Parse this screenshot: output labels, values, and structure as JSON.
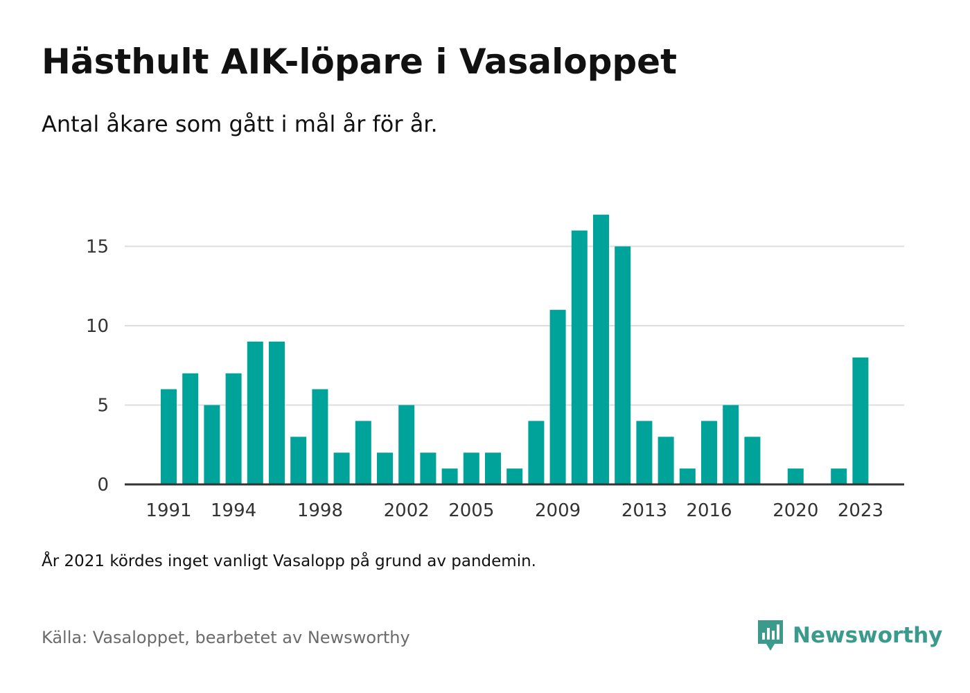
{
  "title": "Hästhult AIK-löpare i Vasaloppet",
  "subtitle": "Antal åkare som gått i mål år för år.",
  "note": "År 2021 kördes inget vanligt Vasalopp på grund av pandemin.",
  "source": "Källa: Vasaloppet, bearbetet av Newsworthy",
  "brand": {
    "name": "Newsworthy",
    "icon": "newsworthy-logo-icon"
  },
  "colors": {
    "bar": "#00a39a",
    "grid": "#dddddd",
    "axis": "#333333",
    "brand": "#3a9a8c"
  },
  "chart_data": {
    "type": "bar",
    "categories": [
      "1991",
      "1992",
      "1993",
      "1994",
      "1995",
      "1996",
      "1997",
      "1998",
      "1999",
      "2000",
      "2001",
      "2002",
      "2003",
      "2004",
      "2005",
      "2006",
      "2007",
      "2008",
      "2009",
      "2010",
      "2011",
      "2012",
      "2013",
      "2014",
      "2015",
      "2016",
      "2017",
      "2018",
      "2019",
      "2020",
      "2021",
      "2022",
      "2023"
    ],
    "values": [
      6,
      7,
      5,
      7,
      9,
      9,
      3,
      6,
      2,
      4,
      2,
      5,
      2,
      1,
      2,
      2,
      1,
      4,
      11,
      16,
      17,
      15,
      4,
      3,
      1,
      4,
      5,
      3,
      0,
      1,
      0,
      1,
      8
    ],
    "x_tick_labels": [
      "1991",
      "1994",
      "1998",
      "2002",
      "2005",
      "2009",
      "2013",
      "2016",
      "2020",
      "2023"
    ],
    "y_ticks": [
      0,
      5,
      10,
      15
    ],
    "ylim": [
      0,
      17
    ],
    "xlabel": "",
    "ylabel": "",
    "grid": true
  }
}
